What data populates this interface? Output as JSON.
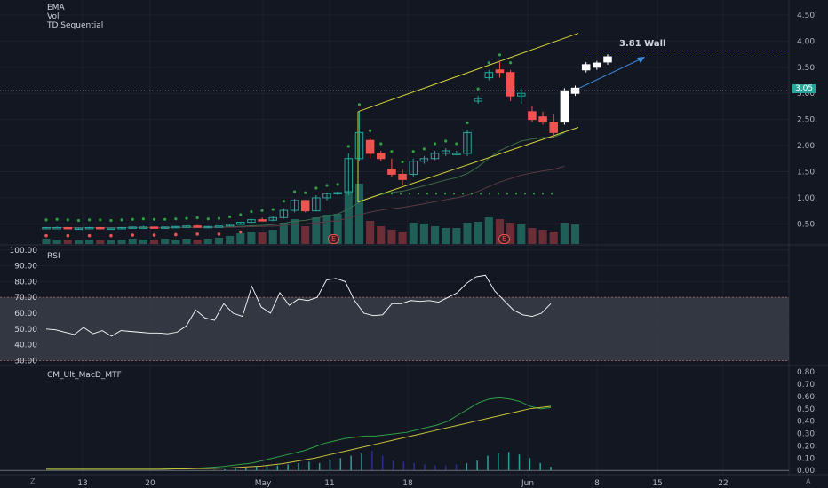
{
  "indicators": [
    "EMA",
    "Vol",
    "TD Sequential"
  ],
  "rsi_title": "RSI",
  "macd_title": "CM_Ult_MacD_MTF",
  "annotation": "3.81 Wall",
  "last_price": "3.05",
  "event_marker": "E",
  "corner_left": "Z",
  "corner_right": "A",
  "colors": {
    "up": "#26a69a",
    "down": "#ef5350",
    "bg": "#131722",
    "channel": "#d4d63b",
    "rsi": "#ffffff",
    "macd": "#2ea043",
    "signal": "#c9c23a"
  },
  "chart_data": [
    {
      "type": "candlestick",
      "pane": "price",
      "y_ticks": [
        "4.50",
        "4.00",
        "3.50",
        "3.00",
        "2.50",
        "2.00",
        "1.50",
        "1.00",
        "0.50"
      ],
      "x_ticks": [
        "13",
        "20",
        "May",
        "11",
        "18",
        "Jun",
        "8",
        "15",
        "22"
      ],
      "ohlc": [
        [
          0.42,
          0.44,
          0.41,
          0.43
        ],
        [
          0.43,
          0.45,
          0.42,
          0.43
        ],
        [
          0.43,
          0.44,
          0.41,
          0.42
        ],
        [
          0.42,
          0.43,
          0.4,
          0.42
        ],
        [
          0.42,
          0.44,
          0.41,
          0.43
        ],
        [
          0.43,
          0.44,
          0.42,
          0.42
        ],
        [
          0.42,
          0.43,
          0.41,
          0.42
        ],
        [
          0.42,
          0.44,
          0.41,
          0.43
        ],
        [
          0.43,
          0.45,
          0.42,
          0.44
        ],
        [
          0.44,
          0.46,
          0.43,
          0.44
        ],
        [
          0.44,
          0.45,
          0.42,
          0.43
        ],
        [
          0.43,
          0.45,
          0.42,
          0.44
        ],
        [
          0.44,
          0.46,
          0.43,
          0.45
        ],
        [
          0.45,
          0.47,
          0.44,
          0.46
        ],
        [
          0.46,
          0.48,
          0.44,
          0.44
        ],
        [
          0.44,
          0.46,
          0.43,
          0.45
        ],
        [
          0.45,
          0.47,
          0.44,
          0.46
        ],
        [
          0.46,
          0.5,
          0.45,
          0.49
        ],
        [
          0.49,
          0.54,
          0.48,
          0.53
        ],
        [
          0.53,
          0.6,
          0.52,
          0.58
        ],
        [
          0.58,
          0.62,
          0.55,
          0.57
        ],
        [
          0.57,
          0.64,
          0.55,
          0.62
        ],
        [
          0.62,
          0.8,
          0.6,
          0.76
        ],
        [
          0.76,
          0.98,
          0.72,
          0.95
        ],
        [
          0.95,
          0.96,
          0.72,
          0.75
        ],
        [
          0.75,
          1.05,
          0.74,
          1.0
        ],
        [
          1.0,
          1.1,
          0.95,
          1.08
        ],
        [
          1.08,
          1.12,
          1.05,
          1.1
        ],
        [
          1.1,
          1.85,
          1.05,
          1.75
        ],
        [
          1.75,
          2.65,
          1.7,
          2.25
        ],
        [
          2.1,
          2.15,
          1.75,
          1.85
        ],
        [
          1.85,
          1.9,
          1.7,
          1.75
        ],
        [
          1.55,
          1.75,
          1.4,
          1.45
        ],
        [
          1.45,
          1.55,
          1.25,
          1.35
        ],
        [
          1.45,
          1.75,
          1.4,
          1.7
        ],
        [
          1.7,
          1.8,
          1.65,
          1.75
        ],
        [
          1.75,
          1.9,
          1.72,
          1.85
        ],
        [
          1.85,
          1.95,
          1.8,
          1.9
        ],
        [
          1.85,
          1.9,
          1.82,
          1.85
        ],
        [
          1.85,
          2.3,
          1.8,
          2.25
        ],
        [
          2.85,
          2.95,
          2.8,
          2.9
        ],
        [
          3.3,
          3.45,
          3.25,
          3.4
        ],
        [
          3.45,
          3.6,
          3.3,
          3.4
        ],
        [
          3.4,
          3.45,
          2.85,
          2.95
        ],
        [
          2.95,
          3.1,
          2.8,
          3.0
        ],
        [
          2.65,
          2.75,
          2.45,
          2.5
        ],
        [
          2.55,
          2.65,
          2.4,
          2.45
        ],
        [
          2.45,
          2.6,
          2.15,
          2.25
        ],
        [
          2.45,
          3.1,
          2.4,
          3.05
        ],
        [
          3.0,
          3.15,
          2.95,
          3.1
        ],
        [
          3.45,
          3.6,
          3.4,
          3.55
        ],
        [
          3.5,
          3.62,
          3.45,
          3.58
        ],
        [
          3.6,
          3.75,
          3.55,
          3.7
        ]
      ]
    },
    {
      "type": "line",
      "pane": "rsi",
      "y_ticks": [
        "100.00",
        "90.00",
        "80.00",
        "70.00",
        "60.00",
        "50.00",
        "40.00",
        "30.00"
      ],
      "values": [
        50,
        49.5,
        48,
        46.5,
        51,
        47,
        49,
        45.5,
        49,
        48.5,
        48,
        47.5,
        47.5,
        47,
        48,
        52,
        62,
        57,
        55.5,
        66,
        60,
        58,
        77,
        64,
        60,
        73,
        65,
        69,
        68,
        70,
        81,
        82,
        80,
        68,
        60,
        58.5,
        59,
        66,
        66,
        68,
        67.5,
        68,
        67,
        70,
        73,
        79,
        83,
        84,
        74,
        68,
        62,
        59,
        58,
        60,
        66
      ]
    },
    {
      "type": "line",
      "pane": "macd",
      "y_ticks": [
        "0.80",
        "0.70",
        "0.60",
        "0.50",
        "0.40",
        "0.30",
        "0.20",
        "0.10",
        "0.00"
      ],
      "series": [
        {
          "values": [
            0.01,
            0.01,
            0.01,
            0.01,
            0.01,
            0.01,
            0.01,
            0.01,
            0.01,
            0.01,
            0.01,
            0.01,
            0.015,
            0.015,
            0.02,
            0.02,
            0.025,
            0.03,
            0.04,
            0.05,
            0.06,
            0.08,
            0.1,
            0.12,
            0.14,
            0.16,
            0.19,
            0.22,
            0.24,
            0.26,
            0.27,
            0.28,
            0.28,
            0.29,
            0.3,
            0.31,
            0.33,
            0.35,
            0.37,
            0.4,
            0.45,
            0.5,
            0.55,
            0.58,
            0.59,
            0.58,
            0.56,
            0.52,
            0.5,
            0.51
          ]
        },
        {
          "values": [
            0.01,
            0.01,
            0.01,
            0.01,
            0.01,
            0.01,
            0.01,
            0.01,
            0.01,
            0.01,
            0.01,
            0.01,
            0.012,
            0.012,
            0.015,
            0.015,
            0.018,
            0.02,
            0.025,
            0.03,
            0.035,
            0.045,
            0.055,
            0.07,
            0.085,
            0.1,
            0.12,
            0.14,
            0.16,
            0.18,
            0.2,
            0.22,
            0.24,
            0.26,
            0.28,
            0.3,
            0.32,
            0.34,
            0.36,
            0.38,
            0.4,
            0.42,
            0.44,
            0.46,
            0.48,
            0.5,
            0.51,
            0.52
          ]
        }
      ]
    }
  ]
}
